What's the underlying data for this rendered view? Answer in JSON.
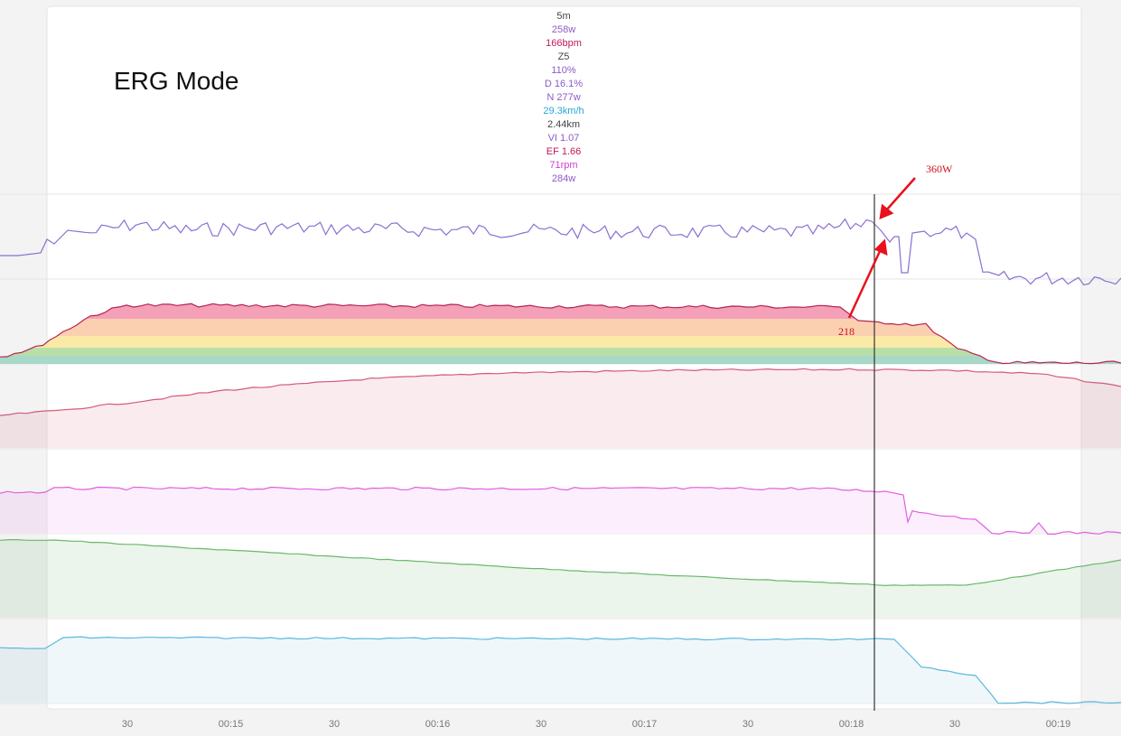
{
  "title": "ERG Mode",
  "stats": [
    "5m",
    "258w",
    "166bpm",
    "Z5",
    "110%",
    "D 16.1%",
    "N 277w",
    "29.3km/h",
    "2.44km",
    "VI 1.07",
    "EF 1.66",
    "71rpm",
    "284w"
  ],
  "annotations": {
    "peak": "360W",
    "low": "218"
  },
  "x_axis": {
    "ticks": [
      "30",
      "00:15",
      "30",
      "00:16",
      "30",
      "00:17",
      "30",
      "00:18",
      "30",
      "00:19"
    ]
  }
}
